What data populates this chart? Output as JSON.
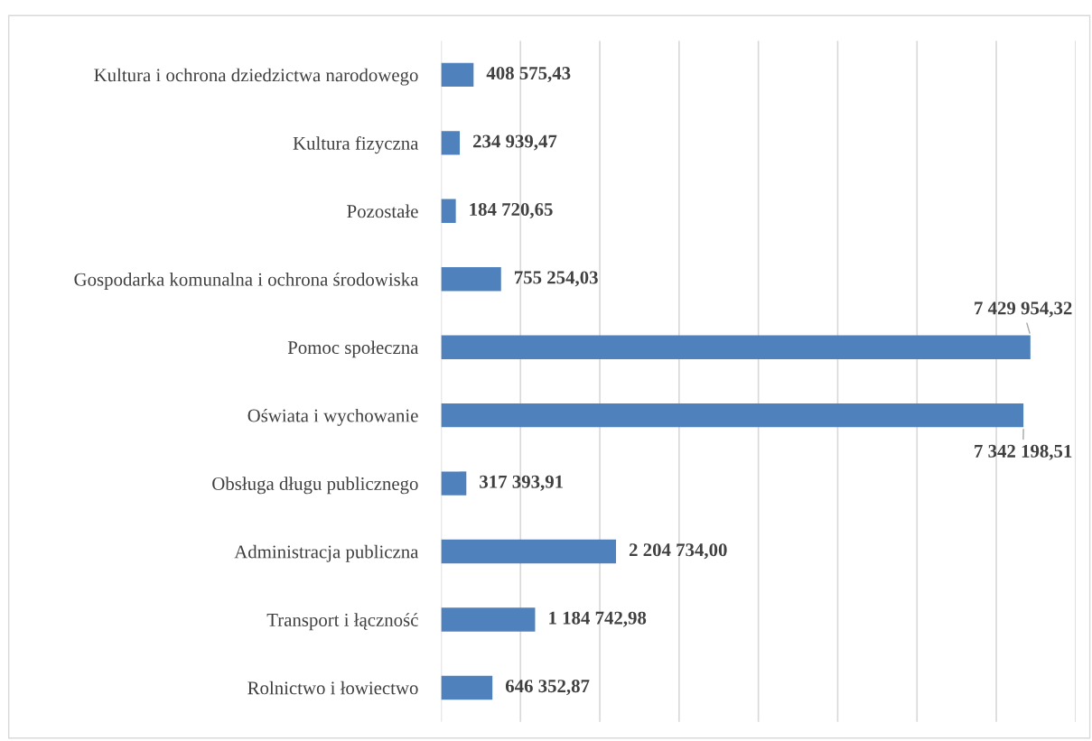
{
  "chart_data": {
    "type": "bar",
    "orientation": "horizontal",
    "categories": [
      "Kultura i ochrona dziedzictwa narodowego",
      "Kultura fizyczna",
      "Pozostałe",
      "Gospodarka komunalna i ochrona środowiska",
      "Pomoc społeczna",
      "Oświata i wychowanie",
      "Obsługa długu publicznego",
      "Administracja publiczna",
      "Transport i łączność",
      "Rolnictwo i łowiectwo"
    ],
    "values": [
      408575.43,
      234939.47,
      184720.65,
      755254.03,
      7429954.32,
      7342198.51,
      317393.91,
      2204734.0,
      1184742.98,
      646352.87
    ],
    "value_labels": [
      "408 575,43",
      "234 939,47",
      "184 720,65",
      "755 254,03",
      "7 429 954,32",
      "7 342 198,51",
      "317 393,91",
      "2 204 734,00",
      "1 184 742,98",
      "646 352,87"
    ],
    "color": "#4f81bd",
    "xlim": [
      0,
      8000000
    ],
    "xticks": [
      {
        "value": 0,
        "label": null
      },
      {
        "value": 1000000,
        "label": null
      },
      {
        "value": 2000000,
        "label": null
      },
      {
        "value": 3000000,
        "label": null
      },
      {
        "value": 4000000,
        "label": null
      },
      {
        "value": 5000000,
        "label": null
      },
      {
        "value": 6000000,
        "label": null
      },
      {
        "value": 7000000,
        "label": null
      },
      {
        "value": 8000000,
        "label": null
      }
    ],
    "grid": "x",
    "tick_labels": "y"
  }
}
